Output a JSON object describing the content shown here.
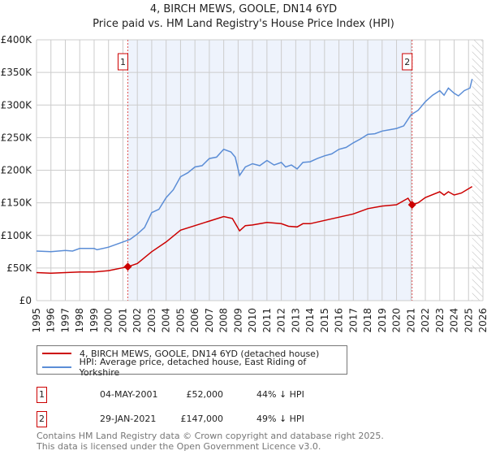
{
  "header": {
    "title": "4, BIRCH MEWS, GOOLE, DN14 6YD",
    "subtitle": "Price paid vs. HM Land Registry's House Price Index (HPI)"
  },
  "chart_data": {
    "type": "line",
    "title": "4, BIRCH MEWS, GOOLE, DN14 6YD",
    "subtitle": "Price paid vs. HM Land Registry's House Price Index (HPI)",
    "xlim": [
      1995,
      2026
    ],
    "ylim": [
      0,
      400000
    ],
    "x_ticks": [
      "1995",
      "1996",
      "1997",
      "1998",
      "1999",
      "2000",
      "2001",
      "2002",
      "2003",
      "2004",
      "2005",
      "2006",
      "2007",
      "2008",
      "2009",
      "2010",
      "2011",
      "2012",
      "2013",
      "2014",
      "2015",
      "2016",
      "2017",
      "2018",
      "2019",
      "2020",
      "2021",
      "2022",
      "2023",
      "2024",
      "2025",
      "2026"
    ],
    "y_ticks": [
      "£0",
      "£50K",
      "£100K",
      "£150K",
      "£200K",
      "£250K",
      "£300K",
      "£350K",
      "£400K"
    ],
    "grid": true,
    "shaded_range": [
      2001.34,
      2021.08
    ],
    "forecast_hatch_from": 2025.25,
    "colors": {
      "property": "#cc0000",
      "hpi": "#5b8dd6",
      "shade": "#eef3fc",
      "marker_line": "#e05050"
    },
    "series": [
      {
        "name": "4, BIRCH MEWS, GOOLE, DN14 6YD (detached house)",
        "color": "#cc0000",
        "x": [
          1995,
          1996,
          1997,
          1998,
          1999,
          2000,
          2001.34,
          2002,
          2003,
          2004,
          2005,
          2006,
          2007,
          2008,
          2008.6,
          2009.1,
          2009.5,
          2010,
          2011,
          2012,
          2012.5,
          2013.1,
          2013.5,
          2014,
          2015,
          2016,
          2017,
          2018,
          2019,
          2020,
          2020.8,
          2021.08,
          2021.5,
          2022,
          2023,
          2023.3,
          2023.6,
          2024,
          2024.5,
          2025.25
        ],
        "y": [
          43000,
          42000,
          43000,
          44000,
          44000,
          46000,
          52000,
          57000,
          75000,
          90000,
          108000,
          115000,
          122000,
          129000,
          126000,
          107000,
          115000,
          116000,
          120000,
          118000,
          114000,
          113000,
          118000,
          118000,
          123000,
          128000,
          133000,
          141000,
          145000,
          147000,
          157000,
          147000,
          150000,
          158000,
          167000,
          162000,
          167000,
          162000,
          165000,
          175000
        ]
      },
      {
        "name": "HPI: Average price, detached house, East Riding of Yorkshire",
        "color": "#5b8dd6",
        "x": [
          1995,
          1996,
          1997,
          1997.5,
          1998,
          1999,
          1999.2,
          2000,
          2001,
          2001.5,
          2002,
          2002.5,
          2003,
          2003.5,
          2004,
          2004.5,
          2005,
          2005.5,
          2006,
          2006.5,
          2007,
          2007.5,
          2008,
          2008.5,
          2008.8,
          2009.1,
          2009.5,
          2010,
          2010.5,
          2011,
          2011.5,
          2012,
          2012.3,
          2012.7,
          2013.1,
          2013.5,
          2014,
          2014.5,
          2015,
          2015.5,
          2016,
          2016.5,
          2017,
          2017.5,
          2018,
          2018.5,
          2019,
          2019.5,
          2020,
          2020.5,
          2021,
          2021.5,
          2022,
          2022.5,
          2023,
          2023.3,
          2023.6,
          2024,
          2024.3,
          2024.7,
          2025.1,
          2025.25
        ],
        "y": [
          76000,
          75000,
          77000,
          76000,
          80000,
          80000,
          78000,
          82000,
          90000,
          94000,
          102000,
          112000,
          135000,
          140000,
          158000,
          170000,
          190000,
          196000,
          205000,
          207000,
          218000,
          220000,
          232000,
          228000,
          220000,
          192000,
          205000,
          210000,
          207000,
          215000,
          208000,
          212000,
          205000,
          208000,
          202000,
          212000,
          213000,
          218000,
          222000,
          225000,
          232000,
          235000,
          242000,
          248000,
          255000,
          256000,
          260000,
          262000,
          264000,
          268000,
          285000,
          292000,
          305000,
          315000,
          322000,
          315000,
          326000,
          318000,
          314000,
          322000,
          326000,
          340000
        ]
      }
    ],
    "sales": [
      {
        "label": "1",
        "x": 2001.34,
        "y": 52000
      },
      {
        "label": "2",
        "x": 2021.08,
        "y": 147000
      }
    ]
  },
  "legend": {
    "property": "4, BIRCH MEWS, GOOLE, DN14 6YD (detached house)",
    "hpi": "HPI: Average price, detached house, East Riding of Yorkshire"
  },
  "table": [
    {
      "num": "1",
      "date": "04-MAY-2001",
      "price": "£52,000",
      "hpi": "44% ↓ HPI"
    },
    {
      "num": "2",
      "date": "29-JAN-2021",
      "price": "£147,000",
      "hpi": "49% ↓ HPI"
    }
  ],
  "footer": {
    "line1": "Contains HM Land Registry data © Crown copyright and database right 2025.",
    "line2": "This data is licensed under the Open Government Licence v3.0."
  }
}
